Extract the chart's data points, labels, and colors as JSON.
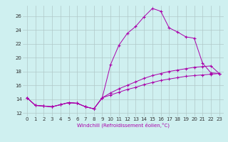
{
  "xlabel": "Windchill (Refroidissement éolien,°C)",
  "bg_color": "#cff0f0",
  "grid_color": "#b0c8c8",
  "line_color": "#aa00aa",
  "xlim": [
    -0.5,
    23.5
  ],
  "ylim": [
    11.5,
    27.5
  ],
  "yticks": [
    12,
    14,
    16,
    18,
    20,
    22,
    24,
    26
  ],
  "xticks": [
    0,
    1,
    2,
    3,
    4,
    5,
    6,
    7,
    8,
    9,
    10,
    11,
    12,
    13,
    14,
    15,
    16,
    17,
    18,
    19,
    20,
    21,
    22,
    23
  ],
  "series1_x": [
    0,
    1,
    2,
    3,
    4,
    5,
    6,
    7,
    8,
    9,
    10,
    11,
    12,
    13,
    14,
    15,
    16,
    17,
    18,
    19,
    20,
    21,
    22,
    23
  ],
  "series1_y": [
    14.2,
    13.1,
    13.0,
    12.9,
    13.2,
    13.5,
    13.4,
    12.9,
    12.6,
    14.2,
    19.0,
    21.8,
    23.5,
    24.5,
    25.9,
    27.1,
    26.7,
    24.3,
    23.7,
    23.0,
    22.8,
    19.2,
    17.8,
    17.7
  ],
  "series2_x": [
    0,
    1,
    2,
    3,
    4,
    5,
    6,
    7,
    8,
    9,
    10,
    11,
    12,
    13,
    14,
    15,
    16,
    17,
    18,
    19,
    20,
    21,
    22,
    23
  ],
  "series2_y": [
    14.2,
    13.1,
    13.0,
    12.9,
    13.2,
    13.5,
    13.4,
    12.9,
    12.6,
    14.2,
    14.6,
    15.0,
    15.4,
    15.7,
    16.1,
    16.4,
    16.7,
    16.9,
    17.1,
    17.3,
    17.4,
    17.5,
    17.6,
    17.7
  ],
  "series3_x": [
    0,
    1,
    2,
    3,
    4,
    5,
    6,
    7,
    8,
    9,
    10,
    11,
    12,
    13,
    14,
    15,
    16,
    17,
    18,
    19,
    20,
    21,
    22,
    23
  ],
  "series3_y": [
    14.2,
    13.1,
    13.0,
    12.9,
    13.2,
    13.5,
    13.4,
    12.9,
    12.6,
    14.2,
    14.9,
    15.5,
    16.0,
    16.5,
    17.0,
    17.4,
    17.7,
    18.0,
    18.2,
    18.4,
    18.6,
    18.7,
    18.8,
    17.7
  ],
  "tick_fontsize": 5,
  "xlabel_fontsize": 5
}
